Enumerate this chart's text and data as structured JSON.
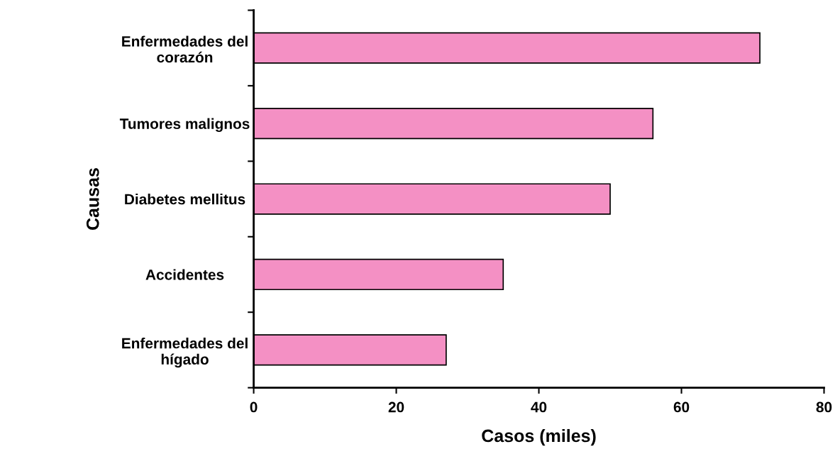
{
  "chart_data": {
    "type": "bar",
    "orientation": "horizontal",
    "categories": [
      "Enfermedades del corazón",
      "Tumores malignos",
      "Diabetes mellitus",
      "Accidentes",
      "Enfermedades del hígado"
    ],
    "values": [
      71,
      56,
      50,
      35,
      27
    ],
    "color": "#f490c4",
    "xlabel": "Casos (miles)",
    "ylabel": "Causas",
    "xlim": [
      0,
      80
    ],
    "xticks": [
      0,
      20,
      40,
      60,
      80
    ],
    "grid": false,
    "legend": false
  }
}
